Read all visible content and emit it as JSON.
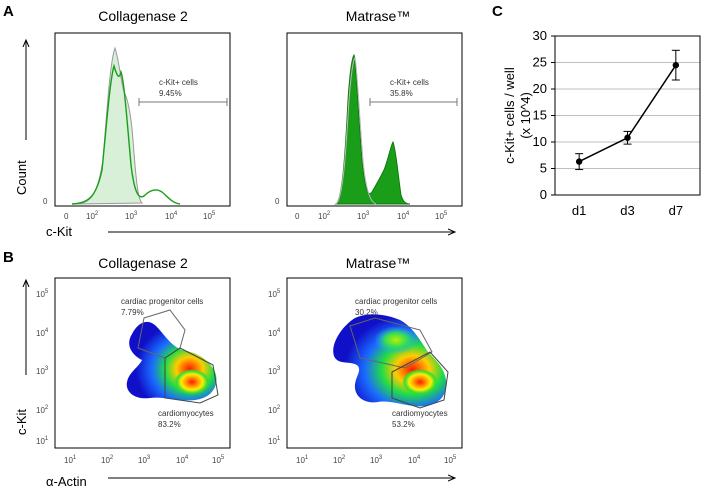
{
  "panels": {
    "A": {
      "letter": "A",
      "y_label": "Count",
      "x_label": "c-Kit",
      "plots": [
        {
          "title": "Collagenase 2",
          "gate_name": "c-Kit+ cells",
          "gate_value": "9.45%"
        },
        {
          "title": "Matrase™",
          "gate_name": "c-Kit+ cells",
          "gate_value": "35.8%"
        }
      ],
      "zero_label": "0",
      "x_ticks": [
        "0",
        "10",
        "10",
        "10",
        "10"
      ],
      "x_tick_exps": [
        "",
        "2",
        "3",
        "4",
        "5"
      ]
    },
    "B": {
      "letter": "B",
      "y_label": "c-Kit",
      "x_label": "α-Actin",
      "plots": [
        {
          "title": "Collagenase 2",
          "upper_gate_name": "cardiac progenitor cells",
          "upper_gate_value": "7.79%",
          "lower_gate_name": "cardiomyocytes",
          "lower_gate_value": "83.2%"
        },
        {
          "title": "Matrase™",
          "upper_gate_name": "cardiac progenitor cells",
          "upper_gate_value": "30.2%",
          "lower_gate_name": "cardiomyocytes",
          "lower_gate_value": "53.2%"
        }
      ],
      "ticks": [
        "10",
        "10",
        "10",
        "10",
        "10"
      ],
      "tick_exps": [
        "1",
        "2",
        "3",
        "4",
        "5"
      ]
    },
    "C": {
      "letter": "C"
    }
  },
  "colors": {
    "histogram_green": "#1a9e1a",
    "histogram_fill_light": "#d8efd8",
    "axis": "#000000"
  },
  "chart_data": [
    {
      "type": "line",
      "title": "",
      "xlabel": "",
      "ylabel": "c-Kit+ cells / well (x 10^4)",
      "categories": [
        "d1",
        "d3",
        "d7"
      ],
      "series": [
        {
          "name": "c-Kit+ cells",
          "values": [
            6.3,
            10.8,
            24.5
          ],
          "errors": [
            1.5,
            1.2,
            2.8
          ]
        }
      ],
      "ylim": [
        0,
        30
      ],
      "yticks": [
        0,
        5,
        10,
        15,
        20,
        25,
        30
      ],
      "grid": true
    }
  ]
}
